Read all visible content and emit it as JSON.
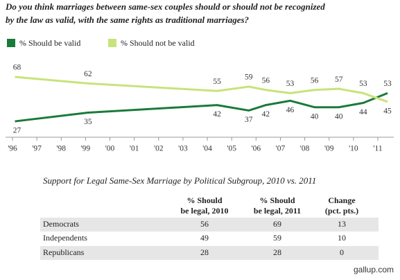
{
  "chart_data": {
    "type": "line",
    "title": [
      "Do you think marriages between same-sex couples should or should not be recognized",
      "by the law as valid, with the same rights as traditional marriages?"
    ],
    "x": [
      1996.1,
      1999.1,
      2004.4,
      2005.7,
      2006.4,
      2007.4,
      2008.4,
      2009.4,
      2010.4,
      2011.4
    ],
    "series": [
      {
        "name": "% Should be valid",
        "color": "#1a7a3a",
        "values": [
          27,
          35,
          42,
          37,
          42,
          46,
          40,
          40,
          44,
          53
        ]
      },
      {
        "name": "% Should not be valid",
        "color": "#c8e37a",
        "values": [
          68,
          62,
          55,
          59,
          56,
          53,
          56,
          57,
          53,
          45
        ]
      }
    ],
    "xlim": [
      1995.9,
      2011.6
    ],
    "xticks": [
      {
        "value": 1996,
        "label": "'96"
      },
      {
        "value": 1997,
        "label": "'97"
      },
      {
        "value": 1998,
        "label": "'98"
      },
      {
        "value": 1999,
        "label": "'99"
      },
      {
        "value": 2000,
        "label": "'00"
      },
      {
        "value": 2001,
        "label": "'01"
      },
      {
        "value": 2002,
        "label": "'02"
      },
      {
        "value": 2003,
        "label": "'03"
      },
      {
        "value": 2004,
        "label": "'04"
      },
      {
        "value": 2005,
        "label": "'05"
      },
      {
        "value": 2006,
        "label": "'06"
      },
      {
        "value": 2007,
        "label": "'07"
      },
      {
        "value": 2008,
        "label": "'08"
      },
      {
        "value": 2009,
        "label": "'09"
      },
      {
        "value": 2010,
        "label": "'10"
      },
      {
        "value": 2011,
        "label": "'11"
      }
    ],
    "ylim": [
      20,
      75
    ]
  },
  "table": {
    "title": "Support for Legal Same-Sex Marriage by Political Subgroup, 2010 vs. 2011",
    "headers": [
      [
        "% Should",
        "be legal, 2010"
      ],
      [
        "% Should",
        "be legal, 2011"
      ],
      [
        "Change",
        "(pct. pts.)"
      ]
    ],
    "rows": [
      [
        "Democrats",
        56,
        69,
        13
      ],
      [
        "Independents",
        49,
        59,
        10
      ],
      [
        "Republicans",
        28,
        28,
        0
      ]
    ]
  },
  "footer": "gallup.com"
}
